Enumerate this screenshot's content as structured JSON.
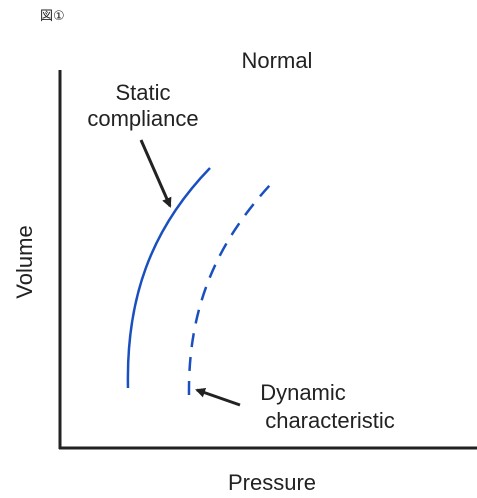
{
  "header": {
    "label": "図①"
  },
  "title": "Normal",
  "curves": [
    {
      "label": [
        "Static",
        "compliance"
      ]
    },
    {
      "label": [
        "Dynamic",
        "characteristic"
      ]
    }
  ],
  "axes": {
    "y_label": "Volume",
    "x_label": "Pressure"
  }
}
